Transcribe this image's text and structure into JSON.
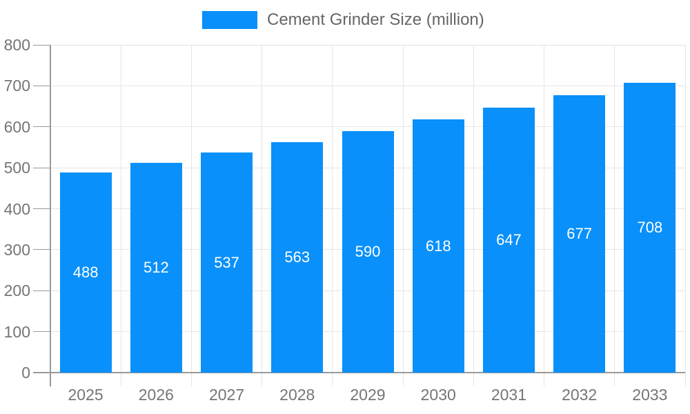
{
  "chart_data": {
    "type": "bar",
    "title": "Cement Grinder Size (million)",
    "categories": [
      "2025",
      "2026",
      "2027",
      "2028",
      "2029",
      "2030",
      "2031",
      "2032",
      "2033"
    ],
    "series": [
      {
        "name": "Cement Grinder Size (million)",
        "values": [
          488,
          512,
          537,
          563,
          590,
          618,
          647,
          677,
          708
        ]
      }
    ],
    "xlabel": "",
    "ylabel": "",
    "ylim": [
      0,
      800
    ],
    "yticks": [
      0,
      100,
      200,
      300,
      400,
      500,
      600,
      700,
      800
    ],
    "grid": true,
    "legend_position": "top-center",
    "value_labels": "inside-bar-centered"
  },
  "legend": {
    "label": "Cement Grinder Size (million)"
  },
  "colors": {
    "bar": "#0A90FA",
    "bar_label": "#FFFFFF",
    "axis_line": "#999999",
    "grid_line": "#E5E5E5",
    "tick_label": "#757575",
    "legend_text": "#666666",
    "background": "#FFFFFF"
  }
}
